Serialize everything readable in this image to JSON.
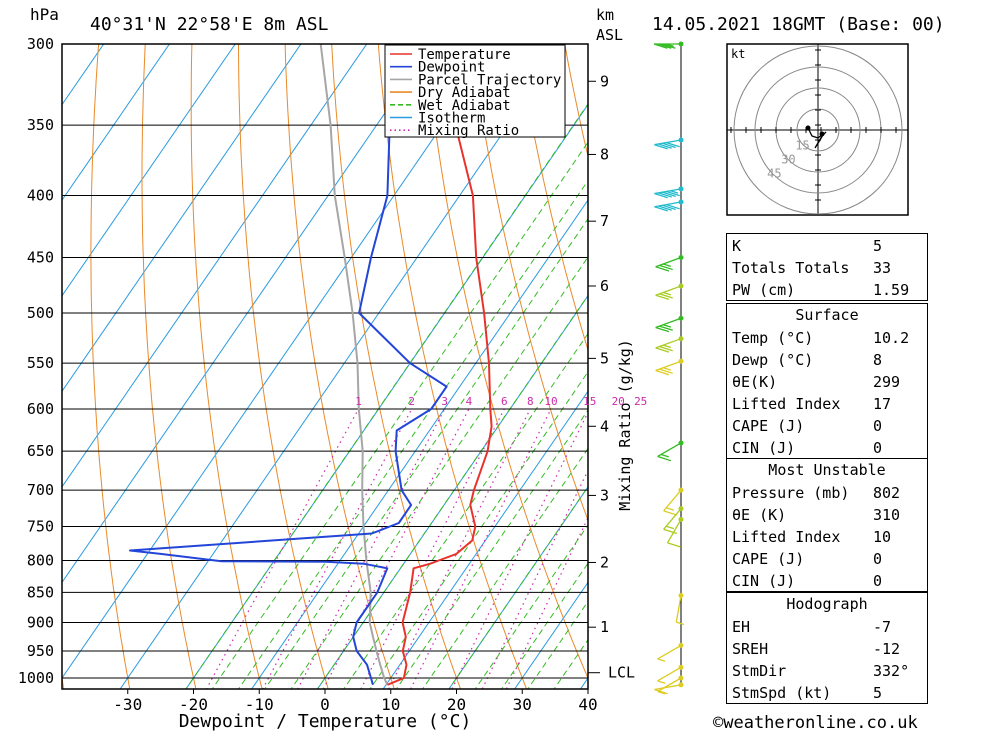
{
  "header": {
    "location": "40°31'N 22°58'E 8m ASL",
    "datetime": "14.05.2021 18GMT (Base: 00)",
    "pressure_unit": "hPa",
    "km_unit": "km",
    "asl_label": "ASL"
  },
  "footer": {
    "copyright": "©weatheronline.co.uk"
  },
  "chart_data": {
    "type": "line",
    "title": "",
    "xlabel": "Dewpoint / Temperature (°C)",
    "ylabel": "hPa",
    "y2label": "Mixing Ratio (g/kg)",
    "xlim": [
      -40,
      40
    ],
    "pressure_ticks": [
      300,
      350,
      400,
      450,
      500,
      550,
      600,
      650,
      700,
      750,
      800,
      850,
      900,
      950,
      1000
    ],
    "temperature_ticks": [
      -30,
      -20,
      -10,
      0,
      10,
      20,
      30,
      40
    ],
    "km_ticks": [
      {
        "label": "1",
        "p": 908
      },
      {
        "label": "2",
        "p": 803
      },
      {
        "label": "3",
        "p": 707
      },
      {
        "label": "4",
        "p": 620
      },
      {
        "label": "5",
        "p": 545
      },
      {
        "label": "6",
        "p": 475
      },
      {
        "label": "7",
        "p": 420
      },
      {
        "label": "8",
        "p": 370
      },
      {
        "label": "9",
        "p": 322
      }
    ],
    "lcl": {
      "label": "LCL",
      "p": 990
    },
    "mixing_ratio_labels": [
      "1",
      "2",
      "3",
      "4",
      "6",
      "8",
      "10",
      "15",
      "20",
      "25"
    ],
    "legend": {
      "placement": "top",
      "items": [
        {
          "name": "Temperature",
          "color": "#e8322c",
          "style": "solid"
        },
        {
          "name": "Dewpoint",
          "color": "#2345d8",
          "style": "solid"
        },
        {
          "name": "Parcel Trajectory",
          "color": "#a6a6a6",
          "style": "solid"
        },
        {
          "name": "Dry Adiabat",
          "color": "#e98a2a",
          "style": "solid"
        },
        {
          "name": "Wet Adiabat",
          "color": "#33bb22",
          "style": "dashed"
        },
        {
          "name": "Isotherm",
          "color": "#2a9be0",
          "style": "solid"
        },
        {
          "name": "Mixing Ratio",
          "color": "#cc2aaa",
          "style": "dotted"
        }
      ]
    },
    "series": [
      {
        "name": "Temperature",
        "points": [
          [
            1013,
            10.2
          ],
          [
            1000,
            12
          ],
          [
            975,
            11
          ],
          [
            950,
            9
          ],
          [
            925,
            8
          ],
          [
            900,
            6
          ],
          [
            850,
            4
          ],
          [
            812,
            2
          ],
          [
            805,
            4
          ],
          [
            800,
            5
          ],
          [
            790,
            7
          ],
          [
            770,
            8
          ],
          [
            750,
            7
          ],
          [
            720,
            4
          ],
          [
            700,
            3
          ],
          [
            650,
            1
          ],
          [
            620,
            -1
          ],
          [
            600,
            -3
          ],
          [
            550,
            -8
          ],
          [
            500,
            -14
          ],
          [
            450,
            -21
          ],
          [
            400,
            -28
          ],
          [
            350,
            -38
          ],
          [
            300,
            -48
          ]
        ]
      },
      {
        "name": "Dewpoint",
        "points": [
          [
            1013,
            8
          ],
          [
            1000,
            7
          ],
          [
            975,
            5
          ],
          [
            950,
            2
          ],
          [
            925,
            0
          ],
          [
            900,
            -1
          ],
          [
            850,
            -1
          ],
          [
            812,
            -2
          ],
          [
            805,
            -6
          ],
          [
            802,
            -12
          ],
          [
            801,
            -28
          ],
          [
            790,
            -38
          ],
          [
            785,
            -43
          ],
          [
            760,
            -8
          ],
          [
            745,
            -5
          ],
          [
            720,
            -5
          ],
          [
            700,
            -8
          ],
          [
            650,
            -13
          ],
          [
            625,
            -15
          ],
          [
            600,
            -12
          ],
          [
            575,
            -12
          ],
          [
            550,
            -20
          ],
          [
            500,
            -33
          ],
          [
            450,
            -37
          ],
          [
            400,
            -41
          ],
          [
            350,
            -48
          ],
          [
            300,
            -55
          ],
          [
            295,
            -57
          ]
        ]
      },
      {
        "name": "Parcel Trajectory",
        "points": [
          [
            1013,
            10.2
          ],
          [
            1000,
            9
          ],
          [
            975,
            7
          ],
          [
            950,
            5
          ],
          [
            925,
            3
          ],
          [
            900,
            1
          ],
          [
            850,
            -2
          ],
          [
            800,
            -6
          ],
          [
            750,
            -10
          ],
          [
            700,
            -14
          ],
          [
            650,
            -18
          ],
          [
            600,
            -23
          ],
          [
            550,
            -28
          ],
          [
            500,
            -34
          ],
          [
            450,
            -41
          ],
          [
            400,
            -49
          ],
          [
            350,
            -57
          ],
          [
            300,
            -67
          ]
        ]
      }
    ],
    "hodograph": {
      "unit": "kt",
      "ring_labels": [
        "15",
        "30",
        "45"
      ]
    },
    "wind_profile": [
      {
        "p": 300,
        "color": "#33bb22",
        "dir": 270,
        "kt": 35
      },
      {
        "p": 360,
        "color": "#22bbcc",
        "dir": 280,
        "kt": 40
      },
      {
        "p": 395,
        "color": "#22bbcc",
        "dir": 280,
        "kt": 45
      },
      {
        "p": 405,
        "color": "#22bbcc",
        "dir": 280,
        "kt": 40
      },
      {
        "p": 450,
        "color": "#33bb22",
        "dir": 290,
        "kt": 25
      },
      {
        "p": 475,
        "color": "#aacc22",
        "dir": 290,
        "kt": 25
      },
      {
        "p": 505,
        "color": "#33bb22",
        "dir": 290,
        "kt": 25
      },
      {
        "p": 525,
        "color": "#aacc22",
        "dir": 290,
        "kt": 25
      },
      {
        "p": 548,
        "color": "#ddcc22",
        "dir": 290,
        "kt": 25
      },
      {
        "p": 640,
        "color": "#33bb22",
        "dir": 300,
        "kt": 15
      },
      {
        "p": 700,
        "color": "#ddcc22",
        "dir": 320,
        "kt": 15
      },
      {
        "p": 725,
        "color": "#aacc22",
        "dir": 320,
        "kt": 15
      },
      {
        "p": 740,
        "color": "#aacc22",
        "dir": 330,
        "kt": 10
      },
      {
        "p": 855,
        "color": "#ddcc22",
        "dir": 350,
        "kt": 5
      },
      {
        "p": 940,
        "color": "#ddcc22",
        "dir": 300,
        "kt": 5
      },
      {
        "p": 980,
        "color": "#ddcc22",
        "dir": 300,
        "kt": 5
      },
      {
        "p": 1000,
        "color": "#ddcc22",
        "dir": 300,
        "kt": 5
      },
      {
        "p": 1013,
        "color": "#ddcc22",
        "dir": 280,
        "kt": 10
      }
    ]
  },
  "indices_table": {
    "top": [
      {
        "label": "K",
        "value": "5"
      },
      {
        "label": "Totals Totals",
        "value": "33"
      },
      {
        "label": "PW (cm)",
        "value": "1.59"
      }
    ],
    "surface": {
      "title": "Surface",
      "rows": [
        {
          "label": "Temp (°C)",
          "value": "10.2"
        },
        {
          "label": "Dewp (°C)",
          "value": "8"
        },
        {
          "label": "θE(K)",
          "value": "299"
        },
        {
          "label": "Lifted Index",
          "value": "17"
        },
        {
          "label": "CAPE (J)",
          "value": "0"
        },
        {
          "label": "CIN (J)",
          "value": "0"
        }
      ]
    },
    "most_unstable": {
      "title": "Most Unstable",
      "rows": [
        {
          "label": "Pressure (mb)",
          "value": "802"
        },
        {
          "label": "θE (K)",
          "value": "310"
        },
        {
          "label": "Lifted Index",
          "value": "10"
        },
        {
          "label": "CAPE (J)",
          "value": "0"
        },
        {
          "label": "CIN (J)",
          "value": "0"
        }
      ]
    },
    "hodograph_stats": {
      "title": "Hodograph",
      "rows": [
        {
          "label": "EH",
          "value": "-7"
        },
        {
          "label": "SREH",
          "value": "-12"
        },
        {
          "label": "StmDir",
          "value": "332°"
        },
        {
          "label": "StmSpd (kt)",
          "value": "5"
        }
      ]
    }
  }
}
